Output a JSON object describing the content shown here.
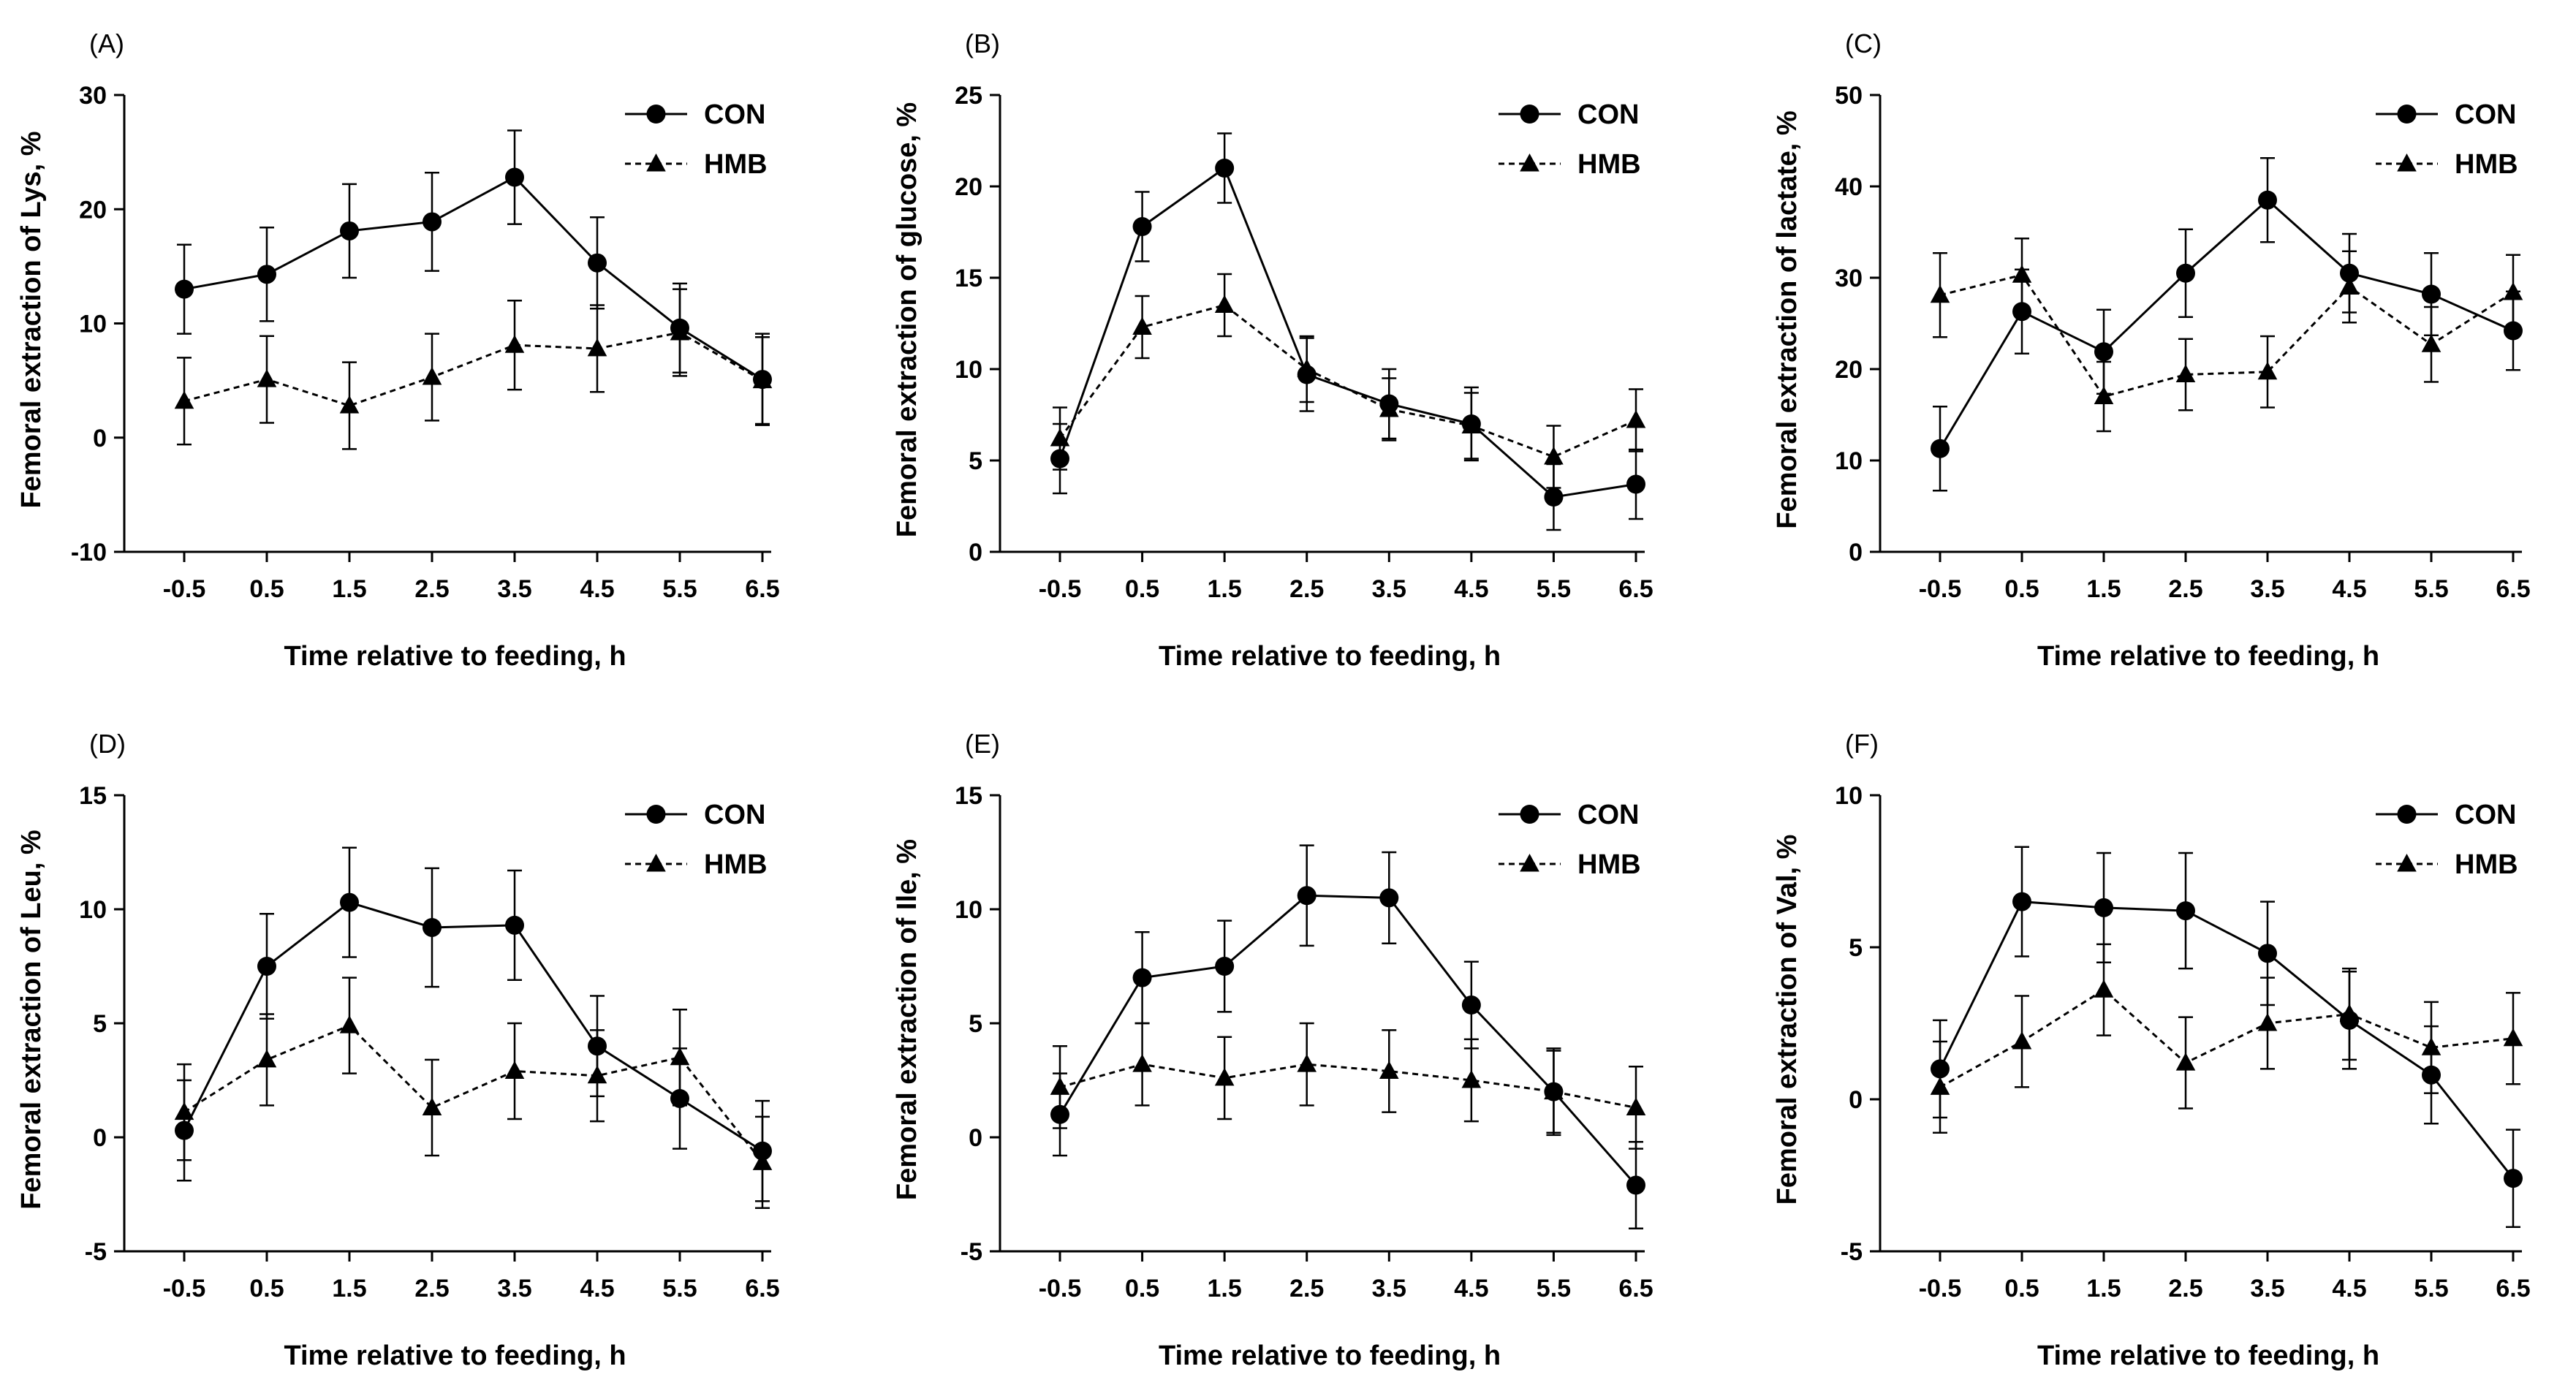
{
  "chart_data": [
    {
      "type": "line",
      "panel_label": "(A)",
      "ylabel": "Femoral extraction of Lys, %",
      "xlabel": "Time relative to feeding, h",
      "categories": [
        "-0.5",
        "0.5",
        "1.5",
        "2.5",
        "3.5",
        "4.5",
        "5.5",
        "6.5"
      ],
      "ylim": [
        -10,
        30
      ],
      "yticks": [
        "-10",
        "0",
        "10",
        "20",
        "30"
      ],
      "series": [
        {
          "name": "CON",
          "marker": "circle",
          "linestyle": "solid",
          "values": [
            13,
            14.3,
            18.1,
            18.9,
            22.8,
            15.3,
            9.6,
            5.1
          ],
          "errors": [
            3.9,
            4.1,
            4.1,
            4.3,
            4.1,
            4.0,
            3.9,
            4.0
          ]
        },
        {
          "name": "HMB",
          "marker": "triangle",
          "linestyle": "dashed",
          "values": [
            3.2,
            5.1,
            2.8,
            5.3,
            8.1,
            7.8,
            9.2,
            5.0
          ],
          "errors": [
            3.8,
            3.8,
            3.8,
            3.8,
            3.9,
            3.8,
            3.8,
            3.8
          ]
        }
      ],
      "legend": "top-right"
    },
    {
      "type": "line",
      "panel_label": "(B)",
      "ylabel": "Femoral extraction of glucose, %",
      "xlabel": "Time relative to feeding, h",
      "categories": [
        "-0.5",
        "0.5",
        "1.5",
        "2.5",
        "3.5",
        "4.5",
        "5.5",
        "6.5"
      ],
      "ylim": [
        0,
        25
      ],
      "yticks": [
        "0",
        "5",
        "10",
        "15",
        "20",
        "25"
      ],
      "series": [
        {
          "name": "CON",
          "marker": "circle",
          "linestyle": "solid",
          "values": [
            5.1,
            17.8,
            21.0,
            9.7,
            8.1,
            7.0,
            3.0,
            3.7
          ],
          "errors": [
            1.9,
            1.9,
            1.9,
            2.0,
            1.9,
            2.0,
            1.8,
            1.9
          ]
        },
        {
          "name": "HMB",
          "marker": "triangle",
          "linestyle": "dashed",
          "values": [
            6.2,
            12.3,
            13.5,
            10.0,
            7.8,
            6.9,
            5.2,
            7.2
          ],
          "errors": [
            1.7,
            1.7,
            1.7,
            1.8,
            1.7,
            1.8,
            1.7,
            1.7
          ]
        }
      ],
      "legend": "top-right"
    },
    {
      "type": "line",
      "panel_label": "(C)",
      "ylabel": "Femoral extraction of lactate, %",
      "xlabel": "Time relative to feeding, h",
      "categories": [
        "-0.5",
        "0.5",
        "1.5",
        "2.5",
        "3.5",
        "4.5",
        "5.5",
        "6.5"
      ],
      "ylim": [
        0,
        50
      ],
      "yticks": [
        "0",
        "10",
        "20",
        "30",
        "40",
        "50"
      ],
      "series": [
        {
          "name": "CON",
          "marker": "circle",
          "linestyle": "solid",
          "values": [
            11.3,
            26.3,
            21.9,
            30.5,
            38.5,
            30.5,
            28.2,
            24.2
          ],
          "errors": [
            4.6,
            4.6,
            4.6,
            4.8,
            4.6,
            4.3,
            4.5,
            4.3
          ]
        },
        {
          "name": "HMB",
          "marker": "triangle",
          "linestyle": "dashed",
          "values": [
            28.1,
            30.3,
            17.0,
            19.4,
            19.7,
            29.0,
            22.7,
            28.4
          ],
          "errors": [
            4.6,
            4.0,
            3.8,
            3.9,
            3.9,
            3.9,
            4.1,
            4.1
          ]
        }
      ],
      "legend": "top-right"
    },
    {
      "type": "line",
      "panel_label": "(D)",
      "ylabel": "Femoral extraction of Leu, %",
      "xlabel": "Time relative to feeding, h",
      "categories": [
        "-0.5",
        "0.5",
        "1.5",
        "2.5",
        "3.5",
        "4.5",
        "5.5",
        "6.5"
      ],
      "ylim": [
        -5,
        15
      ],
      "yticks": [
        "-5",
        "0",
        "5",
        "10",
        "15"
      ],
      "series": [
        {
          "name": "CON",
          "marker": "circle",
          "linestyle": "solid",
          "values": [
            0.3,
            7.5,
            10.3,
            9.2,
            9.3,
            4.0,
            1.7,
            -0.6
          ],
          "errors": [
            2.2,
            2.3,
            2.4,
            2.6,
            2.4,
            2.2,
            2.2,
            2.2
          ]
        },
        {
          "name": "HMB",
          "marker": "triangle",
          "linestyle": "dashed",
          "values": [
            1.1,
            3.4,
            4.9,
            1.3,
            2.9,
            2.7,
            3.5,
            -1.1
          ],
          "errors": [
            2.1,
            2.0,
            2.1,
            2.1,
            2.1,
            2.0,
            2.1,
            2.0
          ]
        }
      ],
      "legend": "top-right"
    },
    {
      "type": "line",
      "panel_label": "(E)",
      "ylabel": "Femoral extraction of Ile, %",
      "xlabel": "Time relative to feeding, h",
      "categories": [
        "-0.5",
        "0.5",
        "1.5",
        "2.5",
        "3.5",
        "4.5",
        "5.5",
        "6.5"
      ],
      "ylim": [
        -5,
        15
      ],
      "yticks": [
        "-5",
        "0",
        "5",
        "10",
        "15"
      ],
      "series": [
        {
          "name": "CON",
          "marker": "circle",
          "linestyle": "solid",
          "values": [
            1.0,
            7.0,
            7.5,
            10.6,
            10.5,
            5.8,
            2.0,
            -2.1
          ],
          "errors": [
            1.8,
            2.0,
            2.0,
            2.2,
            2.0,
            1.9,
            1.9,
            1.9
          ]
        },
        {
          "name": "HMB",
          "marker": "triangle",
          "linestyle": "dashed",
          "values": [
            2.2,
            3.2,
            2.6,
            3.2,
            2.9,
            2.5,
            2.0,
            1.3
          ],
          "errors": [
            1.8,
            1.8,
            1.8,
            1.8,
            1.8,
            1.8,
            1.8,
            1.8
          ]
        }
      ],
      "legend": "top-right"
    },
    {
      "type": "line",
      "panel_label": "(F)",
      "ylabel": "Femoral extraction of Val, %",
      "xlabel": "Time relative to feeding, h",
      "categories": [
        "-0.5",
        "0.5",
        "1.5",
        "2.5",
        "3.5",
        "4.5",
        "5.5",
        "6.5"
      ],
      "ylim": [
        -5,
        10
      ],
      "yticks": [
        "-5",
        "0",
        "5",
        "10"
      ],
      "series": [
        {
          "name": "CON",
          "marker": "circle",
          "linestyle": "solid",
          "values": [
            1.0,
            6.5,
            6.3,
            6.2,
            4.8,
            2.6,
            0.8,
            -2.6
          ],
          "errors": [
            1.6,
            1.8,
            1.8,
            1.9,
            1.7,
            1.6,
            1.6,
            1.6
          ]
        },
        {
          "name": "HMB",
          "marker": "triangle",
          "linestyle": "dashed",
          "values": [
            0.4,
            1.9,
            3.6,
            1.2,
            2.5,
            2.8,
            1.7,
            2.0
          ],
          "errors": [
            1.5,
            1.5,
            1.5,
            1.5,
            1.5,
            1.5,
            1.5,
            1.5
          ]
        }
      ],
      "legend": "top-right"
    }
  ]
}
